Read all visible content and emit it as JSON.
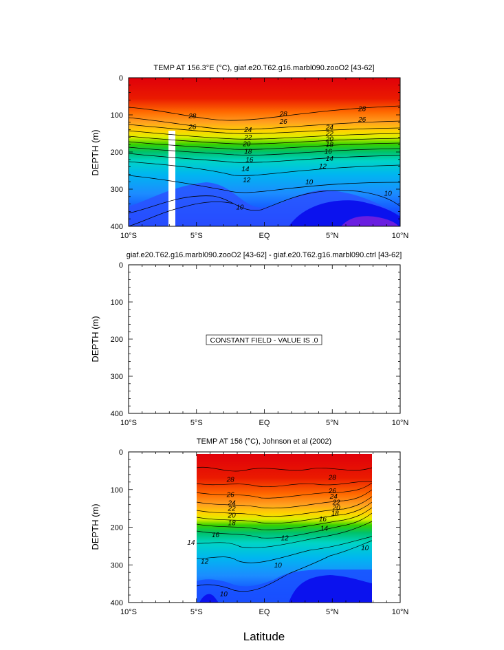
{
  "figure": {
    "xlabel": "Latitude"
  },
  "panels": [
    {
      "title": "TEMP AT 156.3°E (°C), giaf.e20.T62.g16.marbl090.zooO2 [43-62]",
      "ylabel": "DEPTH (m)",
      "xticks": [
        "10°S",
        "5°S",
        "EQ",
        "5°N",
        "10°N"
      ],
      "yticks": [
        "0",
        "100",
        "200",
        "300",
        "400"
      ]
    },
    {
      "title": "giaf.e20.T62.g16.marbl090.zooO2 [43-62] - giaf.e20.T62.g16.marbl090.ctrl [43-62]",
      "ylabel": "DEPTH (m)",
      "xticks": [
        "10°S",
        "5°S",
        "EQ",
        "5°N",
        "10°N"
      ],
      "yticks": [
        "0",
        "100",
        "200",
        "300",
        "400"
      ],
      "note": "CONSTANT FIELD - VALUE IS .0"
    },
    {
      "title": "TEMP AT 156 (°C), Johnson et al (2002)",
      "ylabel": "DEPTH (m)",
      "xticks": [
        "10°S",
        "5°S",
        "EQ",
        "5°N",
        "10°N"
      ],
      "yticks": [
        "0",
        "100",
        "200",
        "300",
        "400"
      ]
    }
  ],
  "chart_data": [
    {
      "type": "heatmap",
      "title": "TEMP AT 156.3°E (°C), giaf.e20.T62.g16.marbl090.zooO2 [43-62]",
      "xlabel": "Latitude",
      "ylabel": "DEPTH (m)",
      "xlim": [
        -10,
        10
      ],
      "ylim": [
        400,
        0
      ],
      "data_xlim": [
        -10,
        10
      ],
      "contour_labels": [
        {
          "text": "28",
          "x": -5.3,
          "y": 103
        },
        {
          "text": "26",
          "x": -5.3,
          "y": 132
        },
        {
          "text": "28",
          "x": 1.4,
          "y": 97
        },
        {
          "text": "26",
          "x": 1.4,
          "y": 118
        },
        {
          "text": "28",
          "x": 7.2,
          "y": 83
        },
        {
          "text": "26",
          "x": 7.2,
          "y": 112
        },
        {
          "text": "24",
          "x": -1.2,
          "y": 140
        },
        {
          "text": "22",
          "x": -1.2,
          "y": 160
        },
        {
          "text": "20",
          "x": -1.3,
          "y": 178
        },
        {
          "text": "18",
          "x": -1.2,
          "y": 198
        },
        {
          "text": "16",
          "x": -1.1,
          "y": 220
        },
        {
          "text": "14",
          "x": -1.4,
          "y": 245
        },
        {
          "text": "12",
          "x": -1.3,
          "y": 275
        },
        {
          "text": "24",
          "x": 4.8,
          "y": 133
        },
        {
          "text": "22",
          "x": 4.8,
          "y": 150
        },
        {
          "text": "20",
          "x": 4.8,
          "y": 165
        },
        {
          "text": "18",
          "x": 4.8,
          "y": 180
        },
        {
          "text": "16",
          "x": 4.7,
          "y": 198
        },
        {
          "text": "14",
          "x": 4.8,
          "y": 218
        },
        {
          "text": "12",
          "x": 4.3,
          "y": 238
        },
        {
          "text": "10",
          "x": 3.3,
          "y": 281
        },
        {
          "text": "10",
          "x": -1.8,
          "y": 348
        },
        {
          "text": "10",
          "x": 9.1,
          "y": 311
        }
      ],
      "missing_band": {
        "x": [
          -3.2,
          -2.7
        ],
        "y": [
          145,
          400
        ]
      }
    },
    {
      "type": "heatmap",
      "title": "giaf.e20.T62.g16.marbl090.zooO2 [43-62] - giaf.e20.T62.g16.marbl090.ctrl [43-62]",
      "xlabel": "Latitude",
      "ylabel": "DEPTH (m)",
      "xlim": [
        -10,
        10
      ],
      "ylim": [
        400,
        0
      ],
      "constant_value": 0
    },
    {
      "type": "heatmap",
      "title": "TEMP AT 156 (°C), Johnson et al (2002)",
      "xlabel": "Latitude",
      "ylabel": "DEPTH (m)",
      "xlim": [
        -10,
        10
      ],
      "ylim": [
        400,
        0
      ],
      "data_xlim": [
        -5,
        8
      ],
      "contour_labels": [
        {
          "text": "28",
          "x": -2.5,
          "y": 73
        },
        {
          "text": "28",
          "x": 5.0,
          "y": 68
        },
        {
          "text": "26",
          "x": -2.5,
          "y": 113
        },
        {
          "text": "24",
          "x": -2.4,
          "y": 135
        },
        {
          "text": "22",
          "x": -2.4,
          "y": 150
        },
        {
          "text": "20",
          "x": -2.4,
          "y": 168
        },
        {
          "text": "18",
          "x": -2.4,
          "y": 188
        },
        {
          "text": "16",
          "x": -3.6,
          "y": 220
        },
        {
          "text": "14",
          "x": -5.4,
          "y": 240
        },
        {
          "text": "12",
          "x": -4.4,
          "y": 290
        },
        {
          "text": "26",
          "x": 5.0,
          "y": 103
        },
        {
          "text": "24",
          "x": 5.1,
          "y": 118
        },
        {
          "text": "22",
          "x": 5.3,
          "y": 133
        },
        {
          "text": "20",
          "x": 5.3,
          "y": 148
        },
        {
          "text": "18",
          "x": 5.2,
          "y": 163
        },
        {
          "text": "16",
          "x": 4.3,
          "y": 178
        },
        {
          "text": "14",
          "x": 4.4,
          "y": 203
        },
        {
          "text": "12",
          "x": 1.5,
          "y": 228
        },
        {
          "text": "10",
          "x": 1.0,
          "y": 300
        },
        {
          "text": "10",
          "x": 7.4,
          "y": 255
        },
        {
          "text": "10",
          "x": -3.0,
          "y": 377
        }
      ]
    }
  ]
}
